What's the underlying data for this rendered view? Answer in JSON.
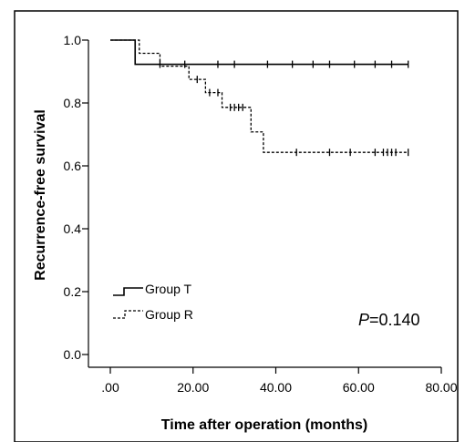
{
  "chart_data": {
    "type": "line",
    "title": "",
    "xlabel": "Time after operation (months)",
    "ylabel": "Recurrence-free survival",
    "xlim": [
      0,
      80
    ],
    "ylim": [
      0,
      1.0
    ],
    "x_ticks": [
      0,
      20,
      40,
      60,
      80
    ],
    "x_tick_labels": [
      ".00",
      "20.00",
      "40.00",
      "60.00",
      "80.00"
    ],
    "y_ticks": [
      0,
      0.2,
      0.4,
      0.6,
      0.8,
      1.0
    ],
    "y_tick_labels": [
      "0.0",
      "0.2",
      "0.4",
      "0.6",
      "0.8",
      "1.0"
    ],
    "grid": false,
    "legend_position": "bottom-left",
    "annotation": {
      "italic": "P",
      "rest": "=0.140"
    },
    "series": [
      {
        "name": "Group T",
        "line_style": "solid",
        "steps": [
          [
            0,
            1.0
          ],
          [
            6,
            0.923
          ],
          [
            72,
            0.923
          ]
        ],
        "censored": [
          12,
          18,
          26,
          30,
          38,
          44,
          49,
          53,
          59,
          64,
          68,
          72
        ]
      },
      {
        "name": "Group R",
        "line_style": "dashed",
        "steps": [
          [
            0,
            1.0
          ],
          [
            7,
            0.958
          ],
          [
            12,
            0.917
          ],
          [
            19,
            0.875
          ],
          [
            23,
            0.833
          ],
          [
            27,
            0.786
          ],
          [
            34,
            0.708
          ],
          [
            37,
            0.643
          ],
          [
            72,
            0.643
          ]
        ],
        "censored": [
          21,
          24,
          26,
          29,
          30,
          31,
          32,
          45,
          53,
          58,
          64,
          66,
          67,
          68,
          69,
          72
        ]
      }
    ]
  }
}
